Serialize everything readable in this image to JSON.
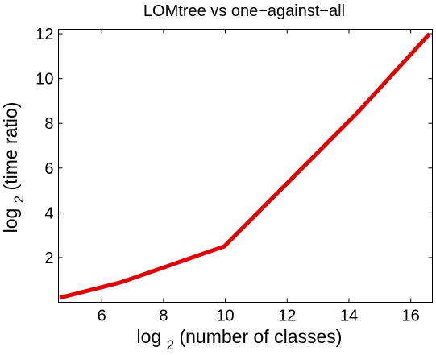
{
  "chart_data": {
    "type": "line",
    "title": "LOMtree vs one−against−all",
    "xlabel": {
      "prefix": "log",
      "subscript": "2",
      "suffix": "(number of classes)"
    },
    "ylabel": {
      "prefix": "log",
      "subscript": "2",
      "suffix": "(time ratio)"
    },
    "xlim": [
      4.6,
      16.7
    ],
    "ylim": [
      0,
      12.2
    ],
    "xticks": [
      6,
      8,
      10,
      12,
      14,
      16
    ],
    "yticks": [
      2,
      4,
      6,
      8,
      10,
      12
    ],
    "grid": false,
    "legend": "none",
    "series": [
      {
        "color": "#e00000",
        "x": [
          4.64,
          6.64,
          9.97,
          14.29,
          16.61
        ],
        "y": [
          0.2,
          0.9,
          2.5,
          8.5,
          12.0
        ]
      }
    ]
  }
}
